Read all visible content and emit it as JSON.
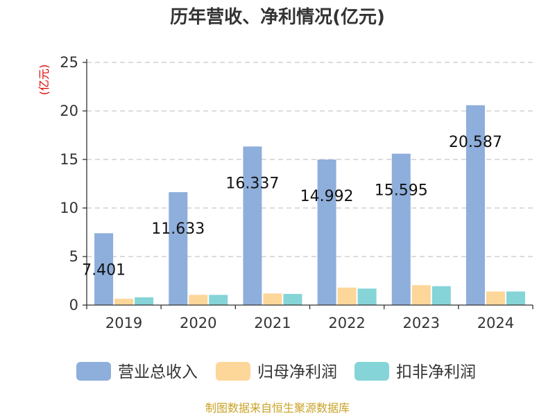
{
  "chart_data": {
    "type": "bar",
    "title": "历年营收、净利情况(亿元)",
    "ylabel": "(亿元)",
    "xlabel": "",
    "categories": [
      "2019",
      "2020",
      "2021",
      "2022",
      "2023",
      "2024"
    ],
    "ylim": [
      0,
      25
    ],
    "yticks": [
      0,
      5,
      10,
      15,
      20,
      25
    ],
    "grid": true,
    "legend_position": "bottom",
    "series": [
      {
        "name": "营业总收入",
        "color": "#8eaedb",
        "values": [
          7.401,
          11.633,
          16.337,
          14.992,
          15.595,
          20.587
        ],
        "labels": [
          "7.401",
          "11.633",
          "16.337",
          "14.992",
          "15.595",
          "20.587"
        ]
      },
      {
        "name": "归母净利润",
        "color": "#fdd699",
        "values": [
          0.65,
          1.05,
          1.2,
          1.8,
          2.05,
          1.4
        ]
      },
      {
        "name": "扣非净利润",
        "color": "#85d4d8",
        "values": [
          0.8,
          1.05,
          1.15,
          1.7,
          1.95,
          1.4
        ]
      }
    ],
    "source": "制图数据来自恒生聚源数据库"
  }
}
